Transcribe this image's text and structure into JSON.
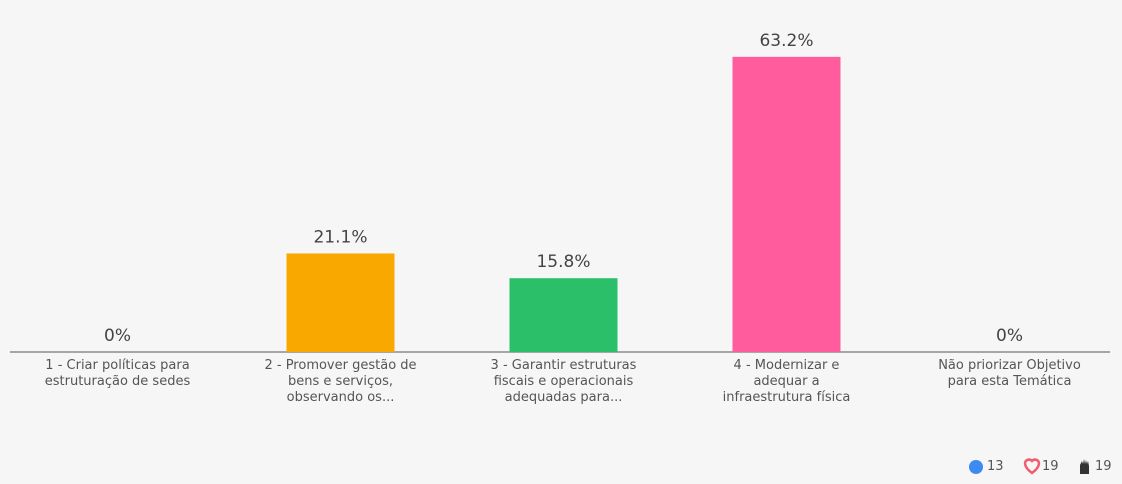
{
  "chart_data": {
    "type": "bar",
    "categories": [
      "1 - Criar políticas para estruturação de sedes",
      "2 - Promover gestão de bens e serviços, observando os...",
      "3 - Garantir estruturas fiscais e operacionais adequadas para...",
      "4 - Modernizar e adequar a infraestrutura física",
      "Não priorizar Objetivo para esta Temática"
    ],
    "values": [
      0,
      21.1,
      15.8,
      63.2,
      0
    ],
    "value_labels": [
      "0%",
      "21.1%",
      "15.8%",
      "63.2%",
      "0%"
    ],
    "colors": [
      "#4a8cf7",
      "#f9a800",
      "#2bbf6a",
      "#ff5c9d",
      "#9aa0a6"
    ]
  },
  "reactions": [
    13,
    19,
    19
  ]
}
